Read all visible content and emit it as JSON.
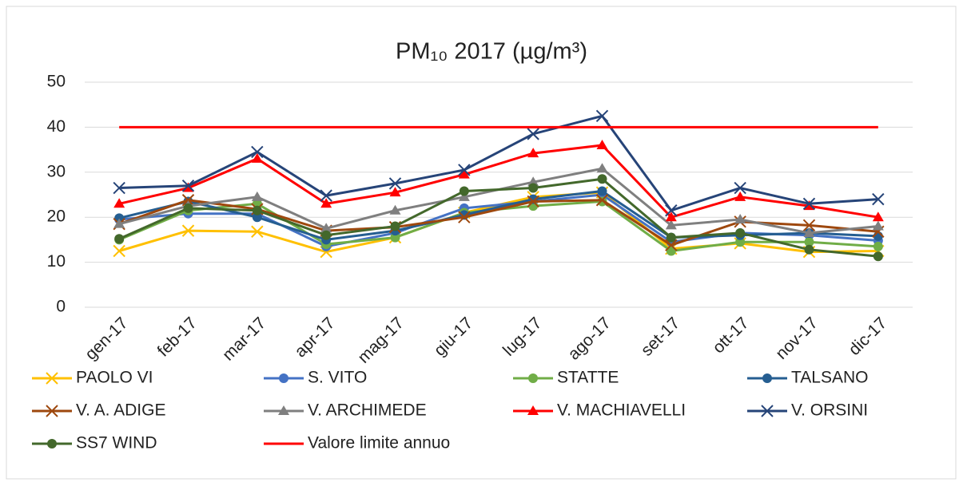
{
  "chart_data": {
    "type": "line",
    "title": "PM₁₀ 2017 (µg/m³)",
    "categories": [
      "gen-17",
      "feb-17",
      "mar-17",
      "apr-17",
      "mag-17",
      "giu-17",
      "lug-17",
      "ago-17",
      "set-17",
      "ott-17",
      "nov-17",
      "dic-17"
    ],
    "ylim": [
      0,
      50
    ],
    "yticks": [
      0,
      10,
      20,
      30,
      40,
      50
    ],
    "grid": true,
    "legend": "bottom",
    "series": [
      {
        "name": "PAOLO VI",
        "color": "#ffc000",
        "marker": "x",
        "values": [
          12.5,
          17,
          16.8,
          12.3,
          15.5,
          21,
          24.5,
          25.5,
          13,
          14.2,
          12.3,
          12.5
        ]
      },
      {
        "name": "S. VITO",
        "color": "#4472c4",
        "marker": "circle",
        "values": [
          19.5,
          20.8,
          20.8,
          13.5,
          16.5,
          22,
          23.5,
          25,
          14.5,
          16.5,
          16,
          14.8
        ]
      },
      {
        "name": "STATTE",
        "color": "#70ad47",
        "marker": "circle",
        "values": [
          15,
          21.5,
          23,
          14,
          15.5,
          21,
          22.5,
          23.5,
          12.5,
          14.5,
          14.5,
          13.5
        ]
      },
      {
        "name": "TALSANO",
        "color": "#255e91",
        "marker": "circle",
        "values": [
          19.8,
          23.5,
          20,
          15,
          17,
          20.5,
          24,
          25.8,
          15.5,
          16,
          16.5,
          15.8
        ]
      },
      {
        "name": "V. A. ADIGE",
        "color": "#9e480e",
        "marker": "x",
        "values": [
          18.5,
          23.8,
          21.8,
          17,
          17.8,
          20,
          23.5,
          23.8,
          13.8,
          19,
          18.2,
          16.8
        ]
      },
      {
        "name": "V. ARCHIMEDE",
        "color": "#7f7f7f",
        "marker": "triangle",
        "values": [
          18.5,
          22.5,
          24.5,
          17.5,
          21.5,
          24.5,
          27.8,
          30.8,
          18.2,
          19.5,
          16.5,
          18
        ]
      },
      {
        "name": "V. MACHIAVELLI",
        "color": "#ff0000",
        "marker": "triangle",
        "values": [
          23,
          26.5,
          33,
          23,
          25.5,
          29.5,
          34.2,
          36,
          20,
          24.5,
          22.5,
          20
        ]
      },
      {
        "name": "V. ORSINI",
        "color": "#264478",
        "marker": "x",
        "values": [
          26.5,
          27,
          34.5,
          24.8,
          27.5,
          30.5,
          38.5,
          42.5,
          21.5,
          26.5,
          23,
          24
        ]
      },
      {
        "name": "SS7 WIND",
        "color": "#43682b",
        "marker": "circle",
        "values": [
          15.2,
          22,
          21.5,
          16,
          18,
          25.8,
          26.5,
          28.5,
          15.5,
          16.5,
          12.8,
          11.3
        ]
      },
      {
        "name": "Valore limite annuo",
        "color": "#ff0000",
        "marker": "none",
        "values": [
          40,
          40,
          40,
          40,
          40,
          40,
          40,
          40,
          40,
          40,
          40,
          40
        ]
      }
    ]
  }
}
